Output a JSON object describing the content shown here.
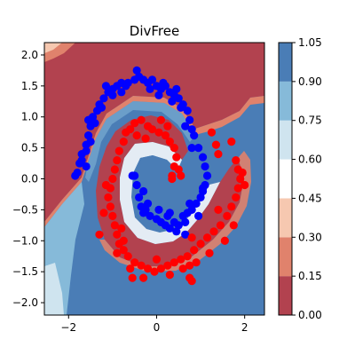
{
  "chart_data": {
    "type": "scatter",
    "title": "DivFree",
    "xlabel": "",
    "ylabel": "",
    "xlim": [
      -2.55,
      2.45
    ],
    "ylim": [
      -2.2,
      2.2
    ],
    "xticks": [
      -2,
      0,
      2
    ],
    "yticks": [
      2.0,
      1.5,
      1.0,
      0.5,
      0.0,
      -0.5,
      -1.0,
      -1.5,
      -2.0
    ],
    "xtick_labels": [
      "−2",
      "0",
      "2"
    ],
    "ytick_labels": [
      "2.0",
      "1.5",
      "1.0",
      "0.5",
      "0.0",
      "−0.5",
      "−1.0",
      "−1.5",
      "−2.0"
    ],
    "grid": false,
    "background": {
      "type": "filled-contour",
      "description_levels": [
        0.0,
        0.15,
        0.3,
        0.45,
        0.6,
        0.75,
        0.9,
        1.05
      ],
      "colors": [
        "#b2424f",
        "#e0826c",
        "#f6c8b0",
        "#ffffff",
        "#cfe4ef",
        "#86bad9",
        "#4a7db6"
      ]
    },
    "colorbar": {
      "ticks": [
        0.0,
        0.15,
        0.3,
        0.45,
        0.6,
        0.75,
        0.9,
        1.05
      ],
      "tick_labels": [
        "0.00",
        "0.15",
        "0.30",
        "0.45",
        "0.60",
        "0.75",
        "0.90",
        "1.05"
      ],
      "colors": [
        "#b2424f",
        "#e0826c",
        "#f6c8b0",
        "#ffffff",
        "#cfe4ef",
        "#86bad9",
        "#4a7db6"
      ]
    },
    "series": [
      {
        "color": "#0000ff",
        "points": [
          [
            -1.8,
            0.1
          ],
          [
            -1.75,
            0.25
          ],
          [
            -1.7,
            0.4
          ],
          [
            -1.6,
            0.55
          ],
          [
            -1.55,
            0.7
          ],
          [
            -1.5,
            0.85
          ],
          [
            -1.45,
            1.0
          ],
          [
            -1.35,
            1.1
          ],
          [
            -1.3,
            1.2
          ],
          [
            -1.2,
            1.3
          ],
          [
            -1.1,
            1.4
          ],
          [
            -1.0,
            1.45
          ],
          [
            -0.9,
            1.5
          ],
          [
            -0.8,
            1.55
          ],
          [
            -0.65,
            1.55
          ],
          [
            -0.5,
            1.6
          ],
          [
            -0.4,
            1.65
          ],
          [
            -0.3,
            1.6
          ],
          [
            -0.2,
            1.55
          ],
          [
            -0.1,
            1.6
          ],
          [
            0.0,
            1.5
          ],
          [
            0.1,
            1.45
          ],
          [
            0.2,
            1.5
          ],
          [
            0.3,
            1.4
          ],
          [
            0.4,
            1.35
          ],
          [
            0.5,
            1.3
          ],
          [
            0.6,
            1.2
          ],
          [
            0.7,
            1.1
          ],
          [
            0.75,
            0.95
          ],
          [
            0.8,
            0.8
          ],
          [
            0.85,
            0.7
          ],
          [
            -1.85,
            0.05
          ],
          [
            -1.7,
            0.3
          ],
          [
            -1.6,
            0.45
          ],
          [
            -1.4,
            0.9
          ],
          [
            -1.25,
            1.15
          ],
          [
            -1.0,
            1.35
          ],
          [
            -0.7,
            1.5
          ],
          [
            -0.45,
            1.75
          ],
          [
            -0.15,
            1.45
          ],
          [
            0.15,
            1.55
          ],
          [
            0.35,
            1.25
          ],
          [
            0.55,
            1.15
          ],
          [
            0.65,
            0.85
          ],
          [
            -1.6,
            0.2
          ],
          [
            -1.5,
            0.6
          ],
          [
            -1.55,
            0.95
          ],
          [
            -1.15,
            1.5
          ],
          [
            -0.8,
            1.4
          ],
          [
            0.05,
            1.35
          ],
          [
            0.45,
            1.45
          ],
          [
            -0.55,
            0.05
          ],
          [
            -0.45,
            -0.1
          ],
          [
            -0.4,
            -0.3
          ],
          [
            -0.35,
            -0.45
          ],
          [
            -0.3,
            -0.55
          ],
          [
            -0.25,
            -0.5
          ],
          [
            -0.15,
            -0.6
          ],
          [
            0.0,
            -0.65
          ],
          [
            0.1,
            -0.7
          ],
          [
            0.2,
            -0.75
          ],
          [
            0.3,
            -0.8
          ],
          [
            0.4,
            -0.7
          ],
          [
            0.5,
            -0.75
          ],
          [
            0.6,
            -0.6
          ],
          [
            0.7,
            -0.55
          ],
          [
            0.8,
            -0.5
          ],
          [
            0.9,
            -0.4
          ],
          [
            1.0,
            -0.3
          ],
          [
            1.05,
            -0.2
          ],
          [
            1.1,
            -0.1
          ],
          [
            1.15,
            0.05
          ],
          [
            1.1,
            0.2
          ],
          [
            1.05,
            0.35
          ],
          [
            0.95,
            0.5
          ],
          [
            -0.3,
            -0.2
          ],
          [
            -0.2,
            -0.4
          ],
          [
            0.05,
            -0.5
          ],
          [
            0.25,
            -0.6
          ],
          [
            0.45,
            -0.85
          ],
          [
            0.65,
            -0.7
          ],
          [
            0.75,
            -0.4
          ],
          [
            0.95,
            -0.6
          ],
          [
            1.05,
            -0.15
          ],
          [
            0.65,
            -0.9
          ],
          [
            0.3,
            -0.55
          ]
        ]
      },
      {
        "color": "#ff0000",
        "points": [
          [
            -0.75,
            0.6
          ],
          [
            -0.7,
            0.75
          ],
          [
            -0.6,
            0.8
          ],
          [
            -0.5,
            0.9
          ],
          [
            -0.35,
            0.95
          ],
          [
            -0.2,
            0.85
          ],
          [
            -0.1,
            0.8
          ],
          [
            0.05,
            0.75
          ],
          [
            0.2,
            0.7
          ],
          [
            0.3,
            0.6
          ],
          [
            0.4,
            0.5
          ],
          [
            0.45,
            0.35
          ],
          [
            0.4,
            0.2
          ],
          [
            -0.85,
            0.45
          ],
          [
            -0.9,
            0.3
          ],
          [
            -0.95,
            0.15
          ],
          [
            -1.0,
            0.0
          ],
          [
            -1.05,
            -0.15
          ],
          [
            -1.1,
            -0.3
          ],
          [
            -1.05,
            -0.45
          ],
          [
            -1.0,
            -0.6
          ],
          [
            -0.95,
            -0.75
          ],
          [
            -0.9,
            -0.9
          ],
          [
            -0.85,
            -1.05
          ],
          [
            -0.75,
            -1.15
          ],
          [
            -0.65,
            -1.25
          ],
          [
            -0.5,
            -1.35
          ],
          [
            -0.35,
            -1.4
          ],
          [
            -0.2,
            -1.45
          ],
          [
            -0.05,
            -1.5
          ],
          [
            0.1,
            -1.45
          ],
          [
            0.25,
            -1.4
          ],
          [
            0.4,
            -1.35
          ],
          [
            0.55,
            -1.3
          ],
          [
            0.7,
            -1.25
          ],
          [
            0.85,
            -1.15
          ],
          [
            1.0,
            -1.05
          ],
          [
            1.15,
            -0.95
          ],
          [
            1.3,
            -0.85
          ],
          [
            1.45,
            -0.75
          ],
          [
            1.6,
            -0.6
          ],
          [
            1.7,
            -0.45
          ],
          [
            1.8,
            -0.3
          ],
          [
            1.85,
            -0.15
          ],
          [
            1.9,
            0.0
          ],
          [
            1.85,
            0.15
          ],
          [
            1.8,
            0.3
          ],
          [
            1.25,
            0.75
          ],
          [
            1.35,
            0.55
          ],
          [
            1.4,
            0.4
          ],
          [
            -0.45,
            0.7
          ],
          [
            -0.25,
            0.65
          ],
          [
            0.1,
            0.95
          ],
          [
            0.25,
            0.85
          ],
          [
            -1.15,
            -0.1
          ],
          [
            -1.2,
            -0.55
          ],
          [
            -0.8,
            -0.8
          ],
          [
            -0.6,
            -1.45
          ],
          [
            -0.3,
            -1.6
          ],
          [
            0.0,
            -1.3
          ],
          [
            0.3,
            -1.55
          ],
          [
            0.6,
            -1.45
          ],
          [
            0.9,
            -1.35
          ],
          [
            1.2,
            -1.2
          ],
          [
            1.55,
            -1.0
          ],
          [
            1.75,
            -0.75
          ],
          [
            2.0,
            -0.1
          ],
          [
            1.95,
            0.1
          ],
          [
            1.7,
            0.6
          ],
          [
            0.35,
            0.0
          ],
          [
            -0.55,
            -1.6
          ],
          [
            0.75,
            -1.6
          ],
          [
            -0.9,
            -1.2
          ],
          [
            1.4,
            -0.5
          ],
          [
            0.8,
            -0.95
          ],
          [
            -1.3,
            -0.9
          ],
          [
            -0.75,
            -1.0
          ],
          [
            0.5,
            0.15
          ],
          [
            0.55,
            0.05
          ]
        ]
      },
      {
        "color": "#0000ff",
        "points": [
          [
            -0.5,
            0.05
          ],
          [
            0.8,
            0.5
          ]
        ]
      },
      {
        "color": "#ff0000",
        "points": [
          [
            0.35,
            0.05
          ],
          [
            0.8,
            -1.65
          ],
          [
            0.75,
            -1.4
          ]
        ]
      }
    ]
  }
}
